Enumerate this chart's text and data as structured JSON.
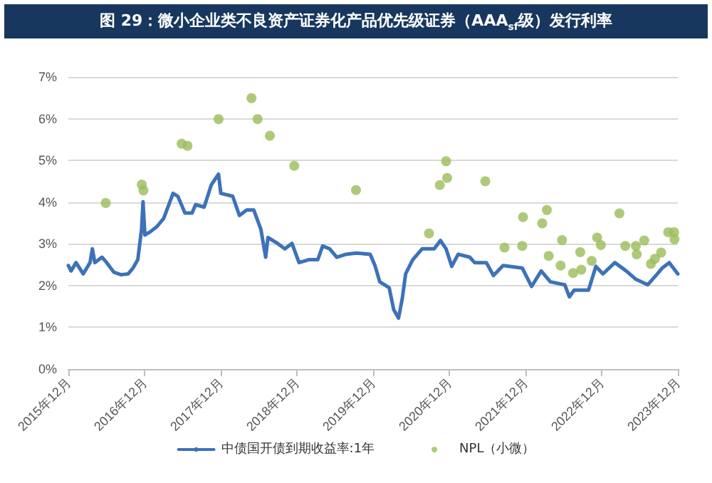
{
  "chart_data": {
    "type": "line",
    "title": "图 29：微小企业类不良资产证券化产品优先级证券（AAA$_{sf}$级）发行利率",
    "xlim": [
      "2015-12",
      "2023-12"
    ],
    "xticks": [
      {
        "value": "2015-12",
        "label": "2015年12月"
      },
      {
        "value": "2016-12",
        "label": "2016年12月"
      },
      {
        "value": "2017-12",
        "label": "2017年12月"
      },
      {
        "value": "2018-12",
        "label": "2018年12月"
      },
      {
        "value": "2019-12",
        "label": "2019年12月"
      },
      {
        "value": "2020-12",
        "label": "2020年12月"
      },
      {
        "value": "2021-12",
        "label": "2021年12月"
      },
      {
        "value": "2022-12",
        "label": "2022年12月"
      },
      {
        "value": "2023-12",
        "label": "2023年12月"
      }
    ],
    "ylim": [
      0,
      7
    ],
    "yticks": [
      {
        "value": 0,
        "label": "0%"
      },
      {
        "value": 1,
        "label": "1%"
      },
      {
        "value": 2,
        "label": "2%"
      },
      {
        "value": 3,
        "label": "3%"
      },
      {
        "value": 4,
        "label": "4%"
      },
      {
        "value": 5,
        "label": "5%"
      },
      {
        "value": 6,
        "label": "6%"
      },
      {
        "value": 7,
        "label": "7%"
      }
    ],
    "grid": "y",
    "legend": "bottom",
    "series": [
      {
        "name": "中债国开债到期收益率:1年",
        "marker": "none",
        "color": "#3d72b8",
        "x": [
          "2015-12-01",
          "2015-12-14",
          "2016-01-07",
          "2016-02-10",
          "2016-03-14",
          "2016-03-25",
          "2016-04-06",
          "2016-05-10",
          "2016-06-02",
          "2016-07-06",
          "2016-08-10",
          "2016-09-13",
          "2016-10-06",
          "2016-10-29",
          "2016-11-16",
          "2016-11-23",
          "2016-12-02",
          "2016-12-25",
          "2017-01-28",
          "2017-03-02",
          "2017-04-16",
          "2017-05-09",
          "2017-06-12",
          "2017-07-16",
          "2017-08-02",
          "2017-09-12",
          "2017-10-16",
          "2017-11-20",
          "2017-12-01",
          "2018-01-27",
          "2018-02-28",
          "2018-04-04",
          "2018-05-08",
          "2018-06-11",
          "2018-07-04",
          "2018-07-15",
          "2018-08-30",
          "2018-10-04",
          "2018-11-07",
          "2018-12-11",
          "2019-01-26",
          "2019-03-11",
          "2019-04-03",
          "2019-05-07",
          "2019-06-10",
          "2019-07-25",
          "2019-09-10",
          "2019-11-17",
          "2019-12-10",
          "2020-01-02",
          "2020-02-16",
          "2020-03-09",
          "2020-04-01",
          "2020-04-19",
          "2020-05-05",
          "2020-06-08",
          "2020-07-23",
          "2020-09-19",
          "2020-10-19",
          "2020-11-15",
          "2020-12-12",
          "2021-01-12",
          "2021-03-08",
          "2021-04-01",
          "2021-05-27",
          "2021-06-30",
          "2021-08-15",
          "2021-11-15",
          "2021-12-30",
          "2022-02-14",
          "2022-03-30",
          "2022-06-07",
          "2022-06-29",
          "2022-07-22",
          "2022-09-29",
          "2022-11-03",
          "2022-12-07",
          "2023-02-02",
          "2023-03-29",
          "2023-05-14",
          "2023-07-10",
          "2023-08-25",
          "2023-09-17",
          "2023-10-21",
          "2023-12-01"
        ],
        "values": [
          2.48,
          2.35,
          2.55,
          2.28,
          2.55,
          2.88,
          2.55,
          2.68,
          2.55,
          2.32,
          2.26,
          2.28,
          2.42,
          2.62,
          3.35,
          4.01,
          3.21,
          3.28,
          3.41,
          3.61,
          4.21,
          4.14,
          3.74,
          3.74,
          3.94,
          3.88,
          4.41,
          4.67,
          4.21,
          4.14,
          3.68,
          3.81,
          3.81,
          3.35,
          2.68,
          3.15,
          3.01,
          2.88,
          3.01,
          2.55,
          2.62,
          2.62,
          2.95,
          2.88,
          2.68,
          2.75,
          2.78,
          2.75,
          2.48,
          2.09,
          1.95,
          1.42,
          1.22,
          1.69,
          2.28,
          2.62,
          2.88,
          2.88,
          3.08,
          2.88,
          2.46,
          2.75,
          2.68,
          2.55,
          2.55,
          2.24,
          2.48,
          2.42,
          1.98,
          2.35,
          2.09,
          2.02,
          1.73,
          1.89,
          1.89,
          2.46,
          2.28,
          2.55,
          2.35,
          2.15,
          2.02,
          2.28,
          2.42,
          2.55,
          2.28
        ]
      },
      {
        "name": "NPL（小微）",
        "type": "scatter",
        "marker": "circle",
        "color": "#9bbb59",
        "x": [
          "2016-05-28",
          "2016-11-17",
          "2016-11-25",
          "2017-05-27",
          "2017-06-24",
          "2017-11-20",
          "2018-04-27",
          "2018-05-26",
          "2018-07-24",
          "2018-11-18",
          "2019-09-10",
          "2020-08-25",
          "2020-10-16",
          "2020-11-15",
          "2020-11-20",
          "2021-05-22",
          "2021-08-22",
          "2021-11-15",
          "2021-11-19",
          "2022-02-19",
          "2022-03-13",
          "2022-03-22",
          "2022-05-18",
          "2022-05-25",
          "2022-07-17",
          "2022-08-20",
          "2022-08-25",
          "2022-10-14",
          "2022-11-09",
          "2022-11-27",
          "2023-02-24",
          "2023-03-24",
          "2023-05-14",
          "2023-05-18",
          "2023-06-23",
          "2023-07-25",
          "2023-08-13",
          "2023-09-12",
          "2023-10-16",
          "2023-11-13",
          "2023-11-15"
        ],
        "values": [
          3.98,
          4.42,
          4.28,
          5.4,
          5.35,
          5.99,
          6.49,
          5.99,
          5.59,
          4.87,
          4.29,
          3.25,
          4.41,
          4.98,
          4.58,
          4.5,
          2.91,
          2.95,
          3.64,
          3.49,
          3.81,
          2.71,
          2.48,
          3.09,
          2.3,
          2.8,
          2.38,
          2.59,
          3.15,
          2.97,
          3.73,
          2.95,
          2.95,
          2.75,
          3.08,
          2.52,
          2.64,
          2.79,
          3.28,
          3.28,
          3.11
        ]
      }
    ]
  }
}
